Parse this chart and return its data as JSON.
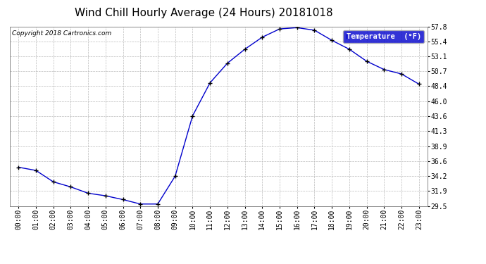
{
  "title": "Wind Chill Hourly Average (24 Hours) 20181018",
  "copyright_text": "Copyright 2018 Cartronics.com",
  "legend_label": "Temperature  (°F)",
  "hours": [
    0,
    1,
    2,
    3,
    4,
    5,
    6,
    7,
    8,
    9,
    10,
    11,
    12,
    13,
    14,
    15,
    16,
    17,
    18,
    19,
    20,
    21,
    22,
    23
  ],
  "x_labels": [
    "00:00",
    "01:00",
    "02:00",
    "03:00",
    "04:00",
    "05:00",
    "06:00",
    "07:00",
    "08:00",
    "09:00",
    "10:00",
    "11:00",
    "12:00",
    "13:00",
    "14:00",
    "15:00",
    "16:00",
    "17:00",
    "18:00",
    "19:00",
    "20:00",
    "21:00",
    "22:00",
    "23:00"
  ],
  "values": [
    35.6,
    35.1,
    33.3,
    32.5,
    31.5,
    31.1,
    30.5,
    29.8,
    29.8,
    34.2,
    43.7,
    48.9,
    52.0,
    54.2,
    56.1,
    57.4,
    57.6,
    57.2,
    55.6,
    54.2,
    52.3,
    51.0,
    50.3,
    48.7
  ],
  "ylim_min": 29.5,
  "ylim_max": 57.8,
  "yticks": [
    29.5,
    31.9,
    34.2,
    36.6,
    38.9,
    41.3,
    43.6,
    46.0,
    48.4,
    50.7,
    53.1,
    55.4,
    57.8
  ],
  "line_color": "#0000cc",
  "marker_color": "#000000",
  "bg_color": "#ffffff",
  "plot_bg_color": "#ffffff",
  "grid_color": "#bbbbbb",
  "title_fontsize": 11,
  "copyright_fontsize": 6.5,
  "tick_fontsize": 7,
  "legend_bg_color": "#0000cc",
  "legend_text_color": "#ffffff",
  "legend_fontsize": 7.5
}
